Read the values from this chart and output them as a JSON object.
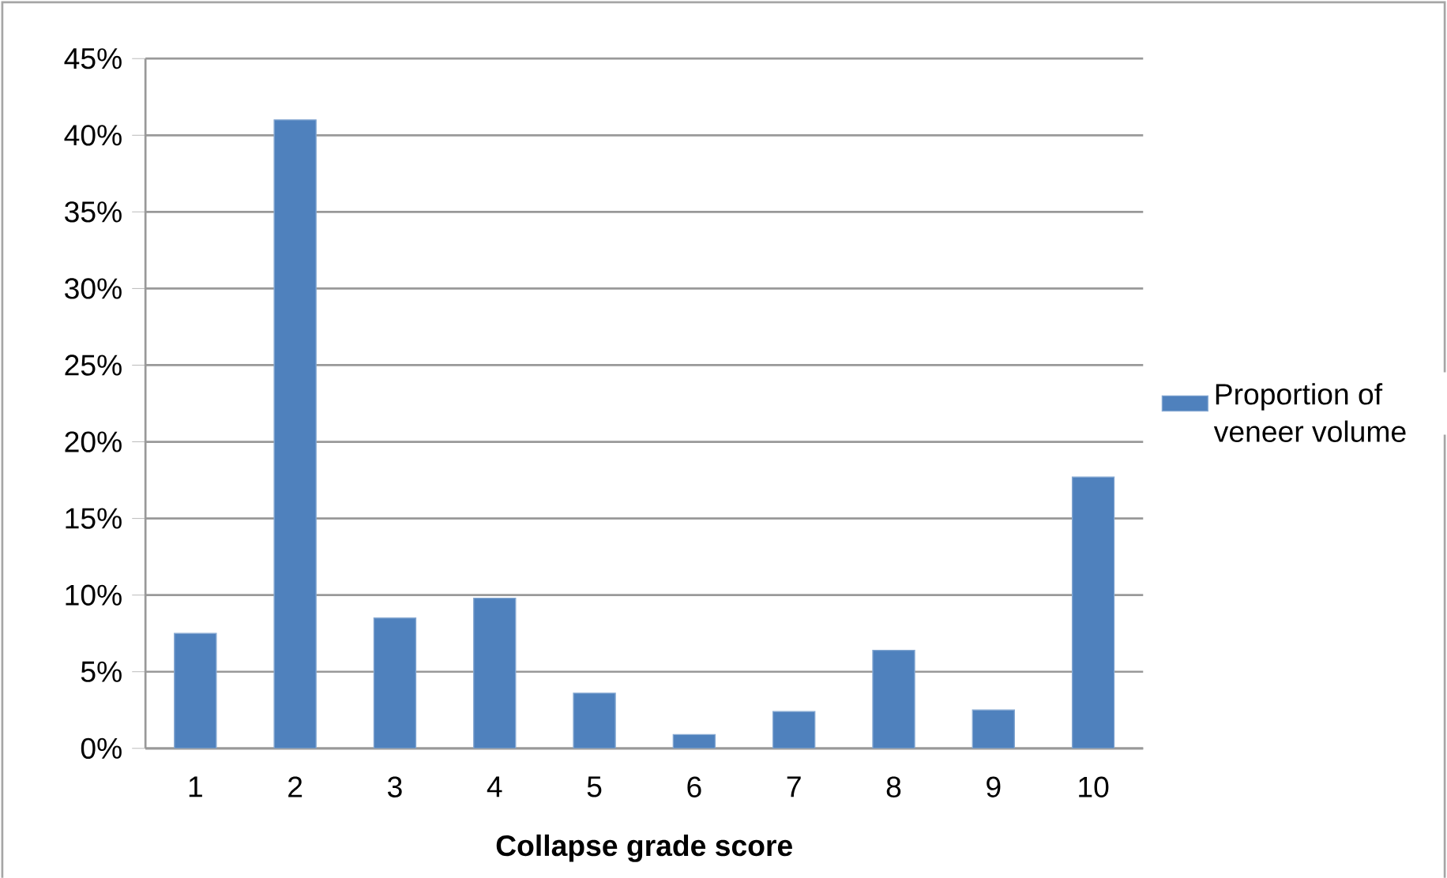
{
  "chart_data": {
    "type": "bar",
    "xlabel": "Collapse grade score",
    "categories": [
      "1",
      "2",
      "3",
      "4",
      "5",
      "6",
      "7",
      "8",
      "9",
      "10"
    ],
    "series": [
      {
        "name": "Proportion of veneer volume",
        "color": "#4f81bd",
        "values": [
          7.5,
          41.0,
          8.5,
          9.8,
          3.6,
          0.9,
          2.4,
          6.4,
          2.5,
          17.7
        ]
      }
    ],
    "ylim": [
      0,
      45
    ],
    "yticks": [
      {
        "value": 0,
        "label": "0%"
      },
      {
        "value": 5,
        "label": "5%"
      },
      {
        "value": 10,
        "label": "10%"
      },
      {
        "value": 15,
        "label": "15%"
      },
      {
        "value": 20,
        "label": "20%"
      },
      {
        "value": 25,
        "label": "25%"
      },
      {
        "value": 30,
        "label": "30%"
      },
      {
        "value": 35,
        "label": "35%"
      },
      {
        "value": 40,
        "label": "40%"
      },
      {
        "value": 45,
        "label": "45%"
      }
    ],
    "grid": "y",
    "legend": "right"
  }
}
